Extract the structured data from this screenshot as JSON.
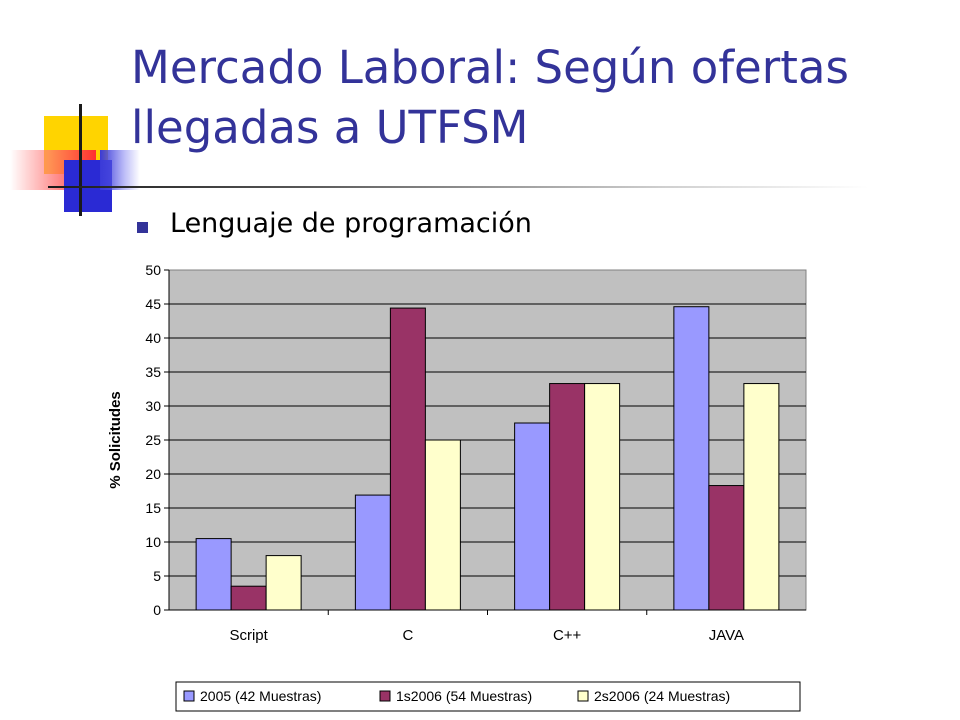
{
  "slide": {
    "title": "Mercado Laboral: Según ofertas llegadas a UTFSM",
    "bullet": "Lenguaje de programación"
  },
  "chart_data": {
    "type": "bar",
    "categories": [
      "Script",
      "C",
      "C++",
      "JAVA"
    ],
    "series": [
      {
        "name": "2005 (42 Muestras)",
        "values": [
          10.5,
          16.9,
          27.5,
          44.6
        ],
        "color": "#9999ff"
      },
      {
        "name": "1s2006 (54 Muestras)",
        "values": [
          3.5,
          44.4,
          33.3,
          18.3
        ],
        "color": "#993366"
      },
      {
        "name": "2s2006 (24 Muestras)",
        "values": [
          8.0,
          25.0,
          33.3,
          33.3
        ],
        "color": "#ffffcc"
      }
    ],
    "title": "",
    "xlabel": "",
    "ylabel": "% Solicitudes",
    "ylim": [
      0,
      50
    ],
    "yticks": [
      0,
      5,
      10,
      15,
      20,
      25,
      30,
      35,
      40,
      45,
      50
    ],
    "grid": true,
    "plot_background": "#c0c0c0",
    "legend": "bottom"
  }
}
